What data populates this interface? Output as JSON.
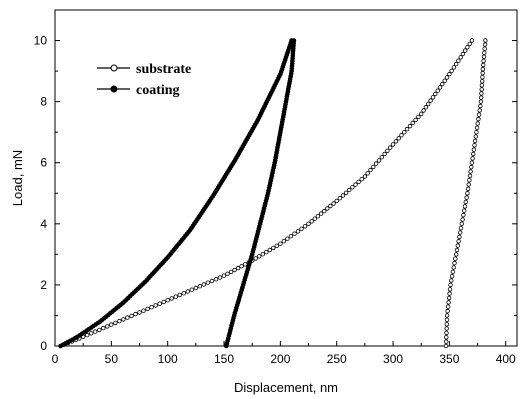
{
  "chart_data": {
    "type": "line",
    "xlabel": "Displacement, nm",
    "ylabel": "Load, mN",
    "xlim": [
      0,
      410
    ],
    "ylim": [
      0,
      11
    ],
    "x_ticks": [
      0,
      50,
      100,
      150,
      200,
      250,
      300,
      350,
      400
    ],
    "y_ticks": [
      0,
      2,
      4,
      6,
      8,
      10
    ],
    "grid": false,
    "legend_position": "top-left",
    "series": [
      {
        "name": "substrate",
        "marker": "open-circle",
        "color": "#000000",
        "loading": {
          "x": [
            5,
            25,
            50,
            75,
            100,
            125,
            150,
            175,
            200,
            225,
            250,
            275,
            300,
            325,
            350,
            370
          ],
          "y": [
            0,
            0.3,
            0.7,
            1.1,
            1.5,
            1.9,
            2.3,
            2.8,
            3.35,
            4.0,
            4.75,
            5.55,
            6.6,
            7.6,
            8.9,
            10.0
          ]
        },
        "unloading": {
          "x": [
            382,
            380,
            378,
            374,
            370,
            366,
            361,
            356,
            351,
            348,
            347
          ],
          "y": [
            10.0,
            9.2,
            8.0,
            7.0,
            6.0,
            5.0,
            4.0,
            3.0,
            2.0,
            1.0,
            0
          ]
        }
      },
      {
        "name": "coating",
        "marker": "filled-circle",
        "color": "#000000",
        "loading": {
          "x": [
            5,
            20,
            40,
            60,
            80,
            100,
            120,
            140,
            160,
            180,
            200,
            210
          ],
          "y": [
            0,
            0.3,
            0.8,
            1.4,
            2.1,
            2.9,
            3.8,
            4.9,
            6.1,
            7.4,
            8.9,
            10.0
          ]
        },
        "unloading": {
          "x": [
            212,
            210,
            205,
            200,
            195,
            189,
            182,
            175,
            167,
            159,
            152
          ],
          "y": [
            10.0,
            9.0,
            8.0,
            7.0,
            6.0,
            5.0,
            4.0,
            3.0,
            2.0,
            1.0,
            0
          ]
        }
      }
    ]
  }
}
